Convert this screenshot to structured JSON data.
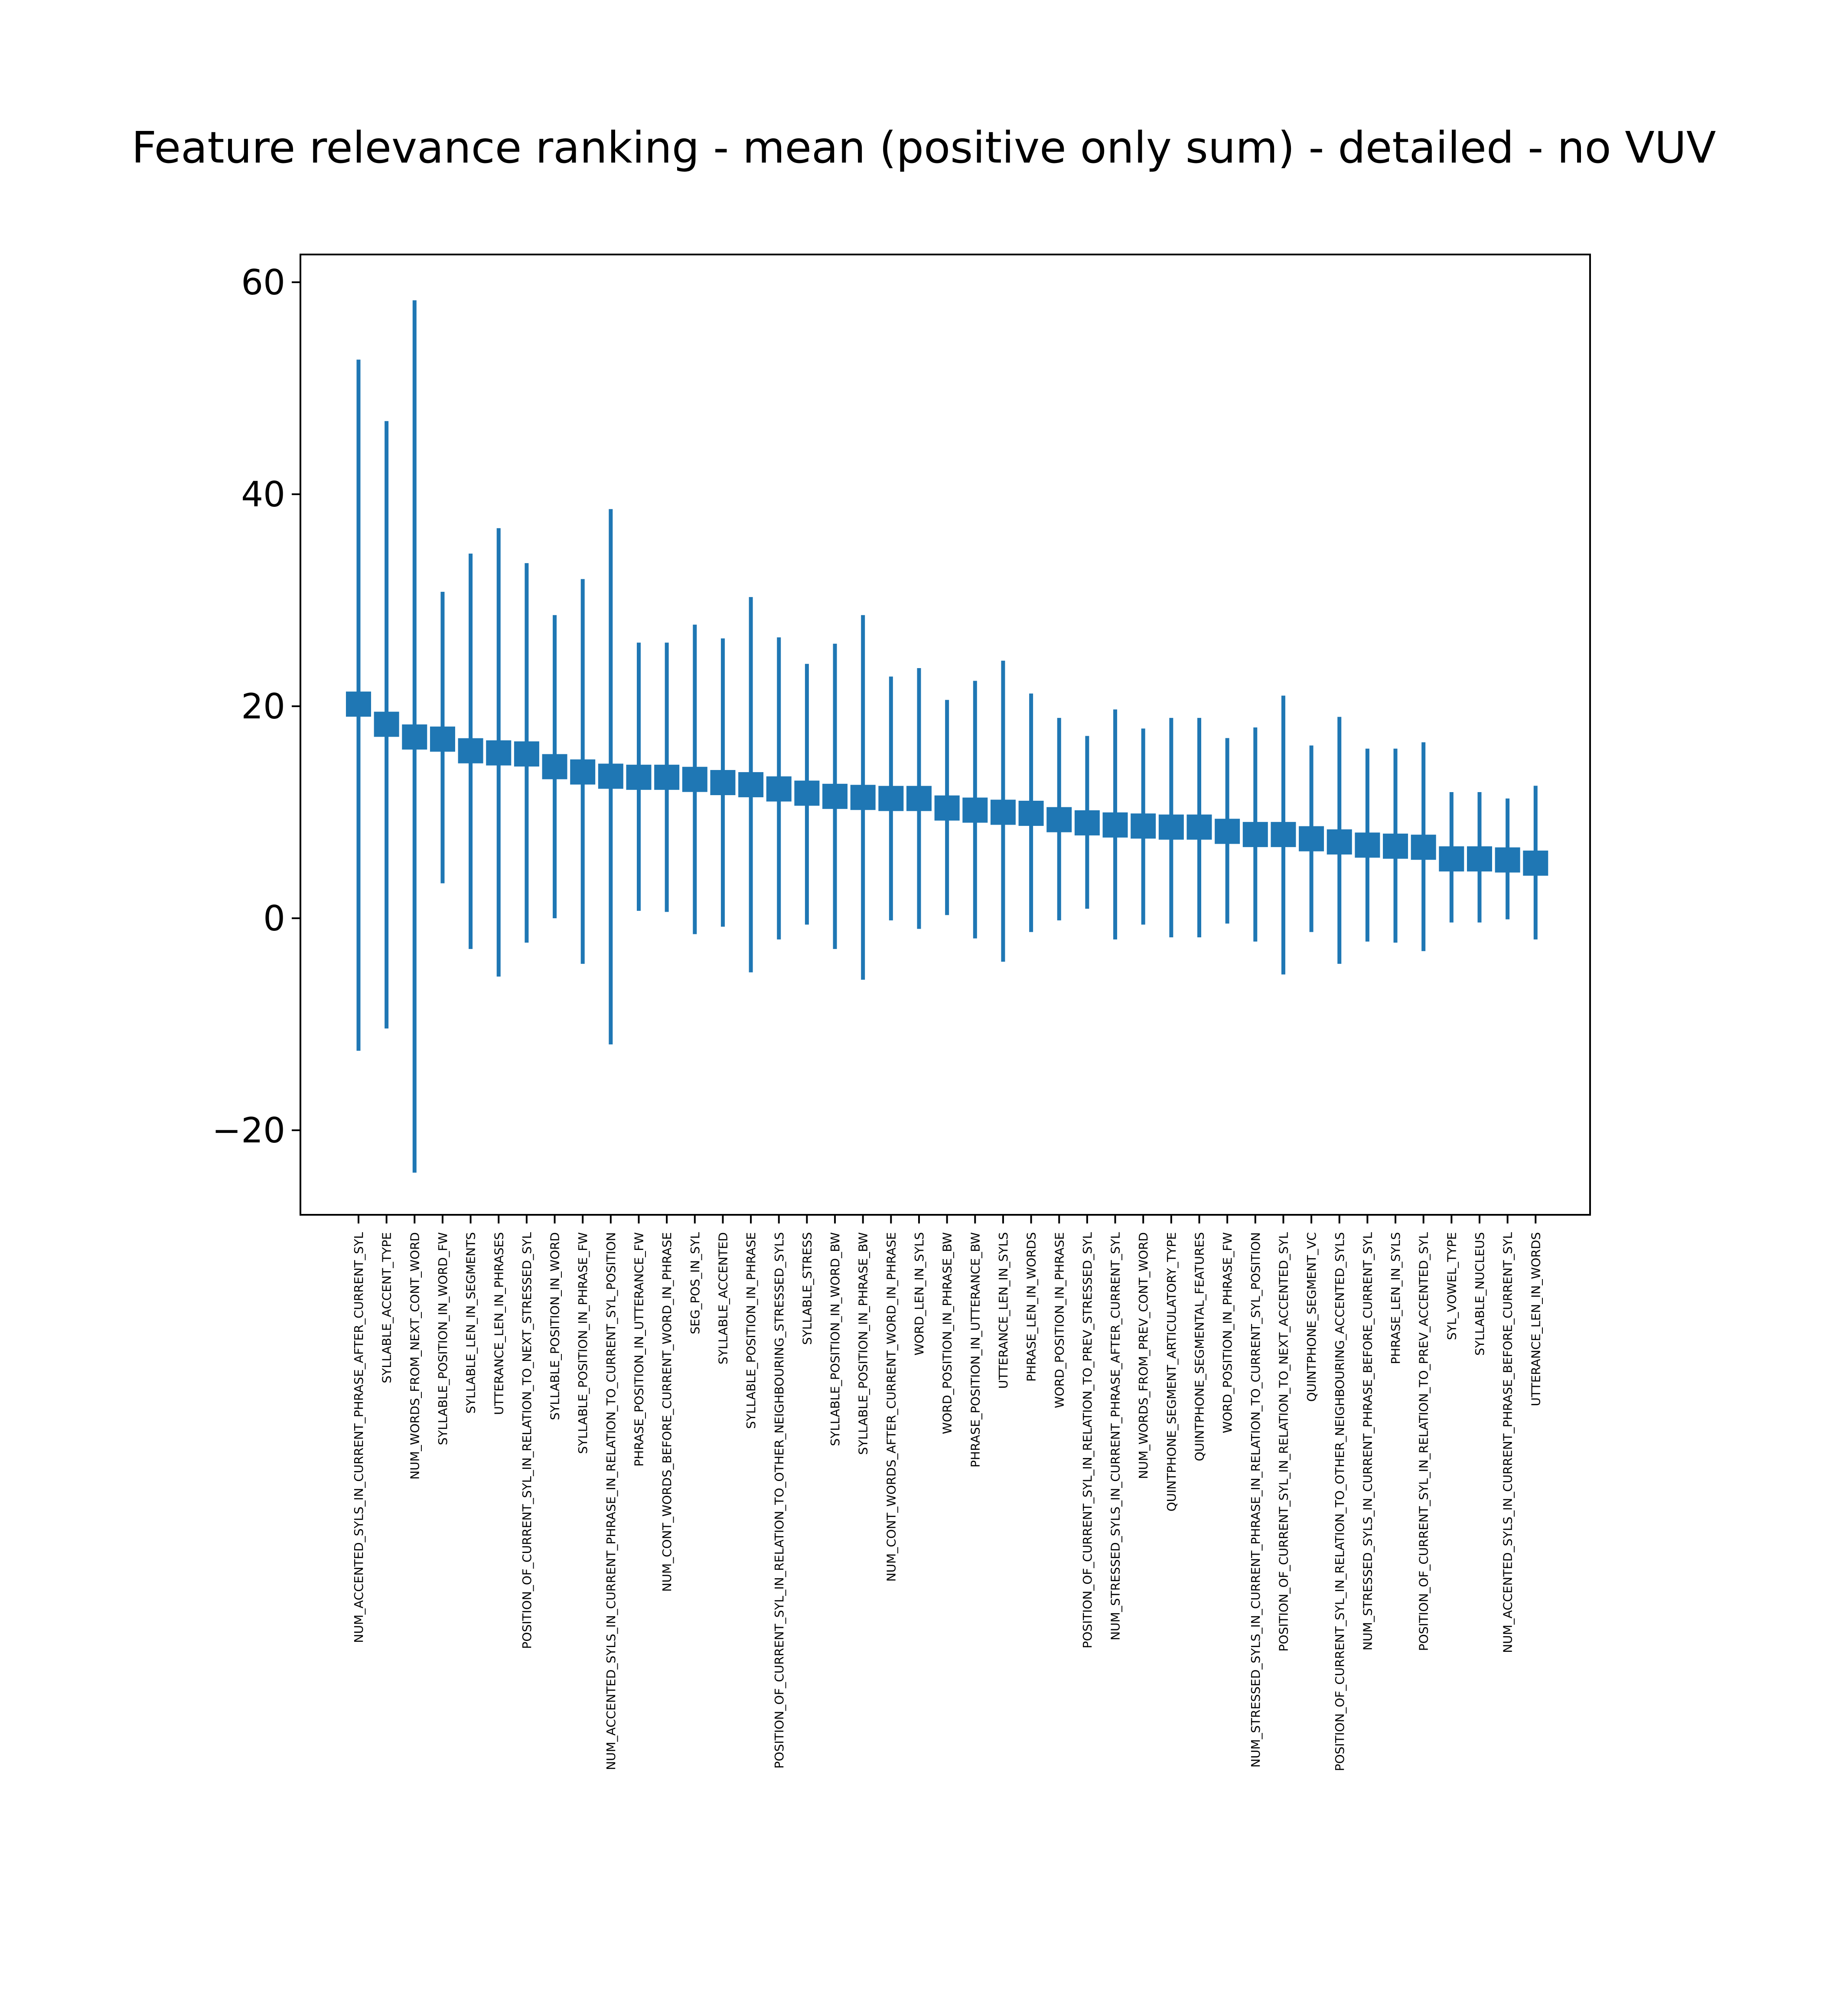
{
  "chart_data": {
    "type": "errorbar",
    "title": "Feature relevance ranking - mean (positive only sum) - detailed - no VUV",
    "xlabel": "",
    "ylabel": "",
    "ylim": [
      -28,
      62.5
    ],
    "yticks": [
      -20,
      0,
      20,
      40,
      60
    ],
    "ytick_labels": [
      "−20",
      "0",
      "20",
      "40",
      "60"
    ],
    "color": "#1f77b4",
    "grid": false,
    "categories": [
      "NUM_ACCENTED_SYLS_IN_CURRENT_PHRASE_AFTER_CURRENT_SYL",
      "SYLLABLE_ACCENT_TYPE",
      "NUM_WORDS_FROM_NEXT_CONT_WORD",
      "SYLLABLE_POSITION_IN_WORD_FW",
      "SYLLABLE_LEN_IN_SEGMENTS",
      "UTTERANCE_LEN_IN_PHRASES",
      "POSITION_OF_CURRENT_SYL_IN_RELATION_TO_NEXT_STRESSED_SYL",
      "SYLLABLE_POSITION_IN_WORD",
      "SYLLABLE_POSITION_IN_PHRASE_FW",
      "NUM_ACCENTED_SYLS_IN_CURRENT_PHRASE_IN_RELATION_TO_CURRENT_SYL_POSITION",
      "PHRASE_POSITION_IN_UTTERANCE_FW",
      "NUM_CONT_WORDS_BEFORE_CURRENT_WORD_IN_PHRASE",
      "SEG_POS_IN_SYL",
      "SYLLABLE_ACCENTED",
      "SYLLABLE_POSITION_IN_PHRASE",
      "POSITION_OF_CURRENT_SYL_IN_RELATION_TO_OTHER_NEIGHBOURING_STRESSED_SYLS",
      "SYLLABLE_STRESS",
      "SYLLABLE_POSITION_IN_WORD_BW",
      "SYLLABLE_POSITION_IN_PHRASE_BW",
      "NUM_CONT_WORDS_AFTER_CURRENT_WORD_IN_PHRASE",
      "WORD_LEN_IN_SYLS",
      "WORD_POSITION_IN_PHRASE_BW",
      "PHRASE_POSITION_IN_UTTERANCE_BW",
      "UTTERANCE_LEN_IN_SYLS",
      "PHRASE_LEN_IN_WORDS",
      "WORD_POSITION_IN_PHRASE",
      "POSITION_OF_CURRENT_SYL_IN_RELATION_TO_PREV_STRESSED_SYL",
      "NUM_STRESSED_SYLS_IN_CURRENT_PHRASE_AFTER_CURRENT_SYL",
      "NUM_WORDS_FROM_PREV_CONT_WORD",
      "QUINTPHONE_SEGMENT_ARTICULATORY_TYPE",
      "QUINTPHONE_SEGMENTAL_FEATURES",
      "WORD_POSITION_IN_PHRASE_FW",
      "NUM_STRESSED_SYLS_IN_CURRENT_PHRASE_IN_RELATION_TO_CURRENT_SYL_POSITION",
      "POSITION_OF_CURRENT_SYL_IN_RELATION_TO_NEXT_ACCENTED_SYL",
      "QUINTPHONE_SEGMENT_VC",
      "POSITION_OF_CURRENT_SYL_IN_RELATION_TO_OTHER_NEIGHBOURING_ACCENTED_SYLS",
      "NUM_STRESSED_SYLS_IN_CURRENT_PHRASE_BEFORE_CURRENT_SYL",
      "PHRASE_LEN_IN_SYLS",
      "POSITION_OF_CURRENT_SYL_IN_RELATION_TO_PREV_ACCENTED_SYL",
      "SYL_VOWEL_TYPE",
      "SYLLABLE_NUCLEUS",
      "NUM_ACCENTED_SYLS_IN_CURRENT_PHRASE_BEFORE_CURRENT_SYL",
      "UTTERANCE_LEN_IN_WORDS"
    ],
    "series": [
      {
        "mean": [
          20.2,
          18.3,
          17.1,
          16.9,
          15.8,
          15.6,
          15.5,
          14.3,
          13.8,
          13.4,
          13.3,
          13.3,
          13.1,
          12.8,
          12.6,
          12.2,
          11.8,
          11.5,
          11.4,
          11.3,
          11.3,
          10.4,
          10.2,
          10.0,
          9.9,
          9.3,
          9.0,
          8.8,
          8.7,
          8.6,
          8.6,
          8.2,
          7.9,
          7.9,
          7.5,
          7.2,
          6.9,
          6.8,
          6.7,
          5.6,
          5.6,
          5.5,
          5.2
        ],
        "upper": [
          52.7,
          46.9,
          58.3,
          30.8,
          34.4,
          36.8,
          33.5,
          28.6,
          32.0,
          38.6,
          26.0,
          26.0,
          27.7,
          26.4,
          30.3,
          26.5,
          24.0,
          25.9,
          28.6,
          22.8,
          23.6,
          20.6,
          22.4,
          24.3,
          21.2,
          18.9,
          17.2,
          19.7,
          17.9,
          18.9,
          18.9,
          17.0,
          18.0,
          21.0,
          16.3,
          19.0,
          16.0,
          16.0,
          16.6,
          11.9,
          11.9,
          11.3,
          12.5
        ],
        "lower": [
          -12.5,
          -10.4,
          -24.0,
          3.3,
          -2.9,
          -5.5,
          -2.3,
          0.0,
          -4.3,
          -11.9,
          0.7,
          0.6,
          -1.5,
          -0.8,
          -5.1,
          -2.0,
          -0.6,
          -2.9,
          -5.8,
          -0.2,
          -1.0,
          0.3,
          -1.9,
          -4.1,
          -1.3,
          -0.2,
          0.9,
          -2.0,
          -0.6,
          -1.8,
          -1.8,
          -0.5,
          -2.2,
          -5.3,
          -1.3,
          -4.3,
          -2.2,
          -2.3,
          -3.1,
          -0.4,
          -0.4,
          -0.1,
          -2.0
        ]
      }
    ]
  }
}
